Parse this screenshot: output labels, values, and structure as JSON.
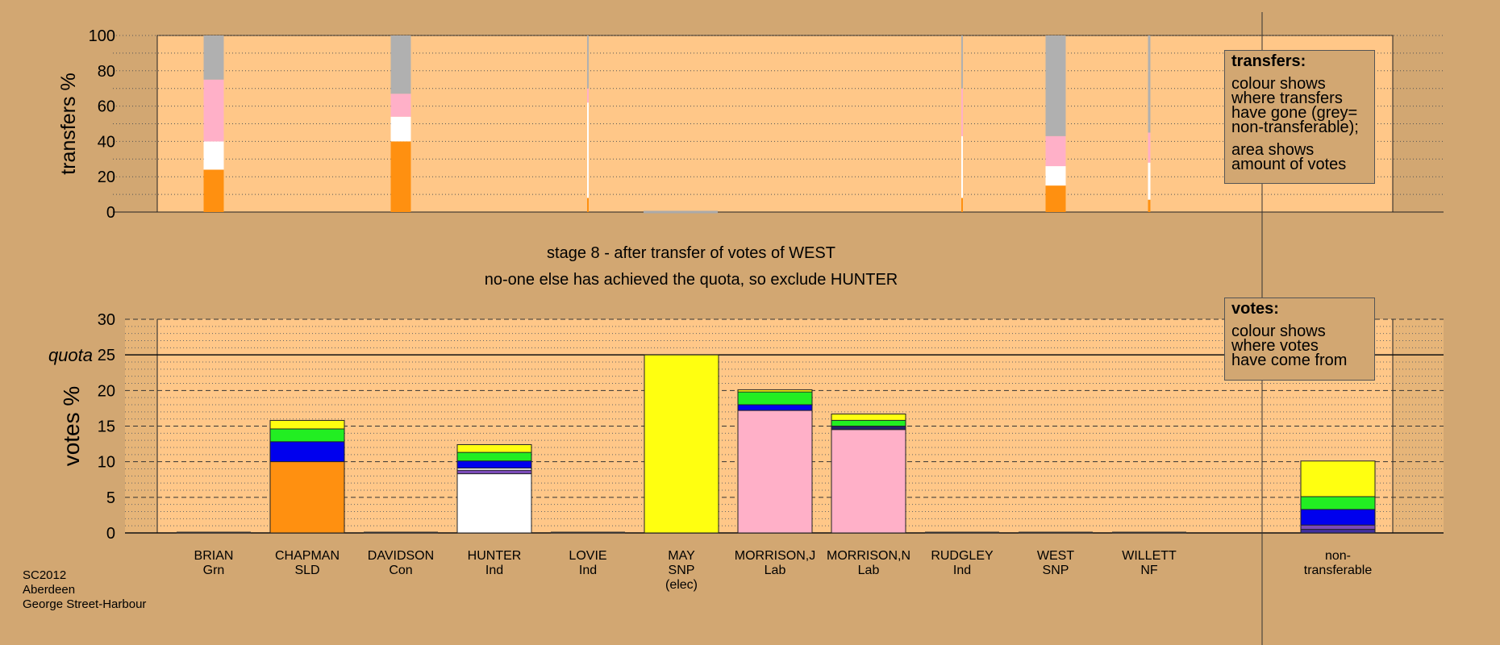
{
  "chart_data": [
    {
      "type": "bar",
      "stacked": true,
      "ylabel": "transfers %",
      "ylim": [
        0,
        100
      ],
      "yticks": [
        0,
        20,
        40,
        60,
        80,
        100
      ],
      "grid": "dotted horizontal",
      "categories": [
        "BRIAN",
        "CHAPMAN",
        "DAVIDSON",
        "HUNTER",
        "LOVIE",
        "MAY",
        "MORRISON,J",
        "MORRISON,N",
        "RUDGLEY",
        "WEST",
        "WILLETT"
      ],
      "bars": [
        {
          "category": "BRIAN",
          "width_share": 1.0,
          "segments": [
            {
              "color": "#ff9010",
              "value": 24
            },
            {
              "color": "#ffffff",
              "value": 16
            },
            {
              "color": "#ffb0c8",
              "value": 35
            },
            {
              "color": "#b0b0b0",
              "value": 25
            }
          ]
        },
        {
          "category": "DAVIDSON",
          "width_share": 1.0,
          "segments": [
            {
              "color": "#ff9010",
              "value": 40
            },
            {
              "color": "#ffffff",
              "value": 14
            },
            {
              "color": "#ffb0c8",
              "value": 13
            },
            {
              "color": "#b0b0b0",
              "value": 33
            }
          ]
        },
        {
          "category": "LOVIE",
          "width_share": 0.08,
          "segments": [
            {
              "color": "#ff9010",
              "value": 8
            },
            {
              "color": "#ffffff",
              "value": 54
            },
            {
              "color": "#ffb0c8",
              "value": 8
            },
            {
              "color": "#b0b0b0",
              "value": 30
            }
          ]
        },
        {
          "category": "RUDGLEY",
          "width_share": 0.08,
          "segments": [
            {
              "color": "#ff9010",
              "value": 8
            },
            {
              "color": "#ffffff",
              "value": 35
            },
            {
              "color": "#ffb0c8",
              "value": 27
            },
            {
              "color": "#b0b0b0",
              "value": 30
            }
          ]
        },
        {
          "category": "WEST",
          "width_share": 1.0,
          "segments": [
            {
              "color": "#ff9010",
              "value": 15
            },
            {
              "color": "#ffffff",
              "value": 11
            },
            {
              "color": "#ffb0c8",
              "value": 17
            },
            {
              "color": "#b0b0b0",
              "value": 57
            }
          ]
        },
        {
          "category": "WILLETT",
          "width_share": 0.12,
          "segments": [
            {
              "color": "#ff9010",
              "value": 7
            },
            {
              "color": "#ffffff",
              "value": 21
            },
            {
              "color": "#ffb0c8",
              "value": 17
            },
            {
              "color": "#b0b0b0",
              "value": 55
            }
          ]
        }
      ],
      "legend": {
        "title": "transfers:",
        "lines": [
          [
            "colour shows",
            "where transfers",
            "have gone (grey=",
            "non-transferable);"
          ],
          [
            "area shows",
            "amount of votes"
          ]
        ]
      }
    },
    {
      "type": "bar",
      "stacked": true,
      "ylabel": "votes %",
      "ylim": [
        0,
        30
      ],
      "yticks": [
        0,
        5,
        10,
        15,
        20,
        25,
        30
      ],
      "quota": 25,
      "quota_label": "quota",
      "grid": "dashed every 5, dotted every 1",
      "candidates": [
        {
          "name": "BRIAN",
          "party": "Grn",
          "segments": []
        },
        {
          "name": "CHAPMAN",
          "party": "SLD",
          "segments": [
            {
              "color": "#ff9010",
              "value": 10
            },
            {
              "color": "#0000ee",
              "value": 2.8
            },
            {
              "color": "#22ee22",
              "value": 1.8
            },
            {
              "color": "#ffff10",
              "value": 1.2
            }
          ]
        },
        {
          "name": "DAVIDSON",
          "party": "Con",
          "segments": []
        },
        {
          "name": "HUNTER",
          "party": "Ind",
          "segments": [
            {
              "color": "#ffffff",
              "value": 8.3
            },
            {
              "color": "#7a4ab8",
              "value": 0.5
            },
            {
              "color": "#ffffff",
              "value": 0.3
            },
            {
              "color": "#0000ee",
              "value": 1.0
            },
            {
              "color": "#22ee22",
              "value": 1.2
            },
            {
              "color": "#ffff10",
              "value": 1.1
            }
          ]
        },
        {
          "name": "LOVIE",
          "party": "Ind",
          "segments": []
        },
        {
          "name": "MAY",
          "party": "SNP",
          "note": "(elec)",
          "segments": [
            {
              "color": "#ffff10",
              "value": 25
            }
          ]
        },
        {
          "name": "MORRISON,J",
          "party": "Lab",
          "segments": [
            {
              "color": "#ffb0c8",
              "value": 17.2
            },
            {
              "color": "#0000ee",
              "value": 0.8
            },
            {
              "color": "#22ee22",
              "value": 1.8
            },
            {
              "color": "#ffff10",
              "value": 0.3
            }
          ]
        },
        {
          "name": "MORRISON,N",
          "party": "Lab",
          "segments": [
            {
              "color": "#ffb0c8",
              "value": 14.5
            },
            {
              "color": "#222266",
              "value": 0.5
            },
            {
              "color": "#22ee22",
              "value": 0.8
            },
            {
              "color": "#ffff10",
              "value": 0.9
            }
          ]
        },
        {
          "name": "RUDGLEY",
          "party": "Ind",
          "segments": []
        },
        {
          "name": "WEST",
          "party": "SNP",
          "segments": []
        },
        {
          "name": "WILLETT",
          "party": "NF",
          "segments": []
        },
        {
          "name": "non-",
          "party": "transferable",
          "segments": [
            {
              "color": "#4030a0",
              "value": 0.5
            },
            {
              "color": "#7a4ab8",
              "value": 0.6
            },
            {
              "color": "#0000ee",
              "value": 2.2
            },
            {
              "color": "#22ee22",
              "value": 1.8
            },
            {
              "color": "#ffff10",
              "value": 5.0
            }
          ]
        }
      ],
      "legend": {
        "title": "votes:",
        "lines": [
          [
            "colour shows",
            "where votes",
            "have come from"
          ]
        ]
      }
    }
  ],
  "stage_title": "stage 8 - after transfer of votes of WEST",
  "stage_subtitle": "no-one else has achieved the quota, so exclude HUNTER",
  "meta": [
    "SC2012",
    "Aberdeen",
    "George Street-Harbour"
  ]
}
